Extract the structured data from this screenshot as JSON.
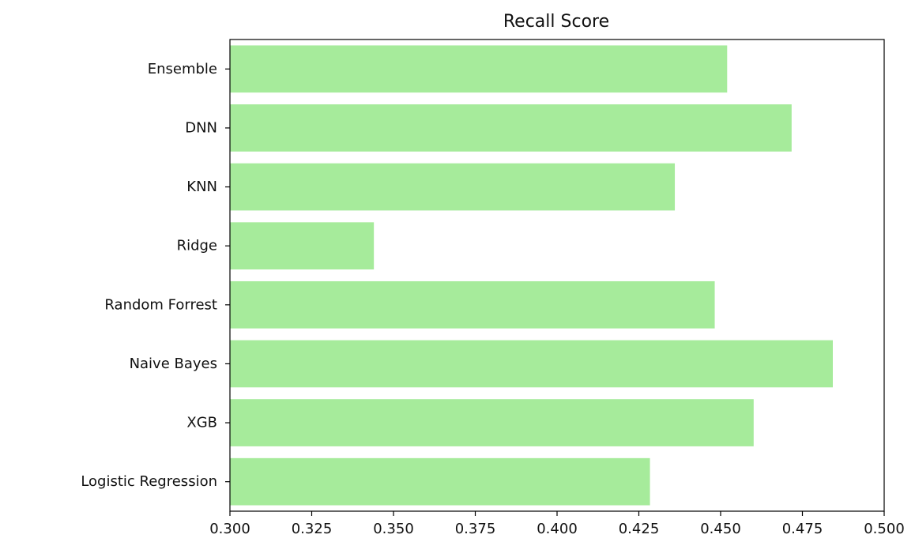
{
  "chart_data": {
    "type": "bar",
    "orientation": "horizontal",
    "title": "Recall Score",
    "xlabel": "",
    "ylabel": "",
    "categories": [
      "Logistic Regression",
      "XGB",
      "Naive Bayes",
      "Random Forrest",
      "Ridge",
      "KNN",
      "DNN",
      "Ensemble"
    ],
    "values": [
      0.4284,
      0.4601,
      0.4843,
      0.4482,
      0.344,
      0.436,
      0.4717,
      0.452
    ],
    "xlim": [
      0.3,
      0.5
    ],
    "xticks": [
      "0.300",
      "0.325",
      "0.350",
      "0.375",
      "0.400",
      "0.425",
      "0.450",
      "0.475",
      "0.500"
    ],
    "grid": false,
    "bar_color": "#a6eb9b",
    "axis_color": "#000000"
  }
}
